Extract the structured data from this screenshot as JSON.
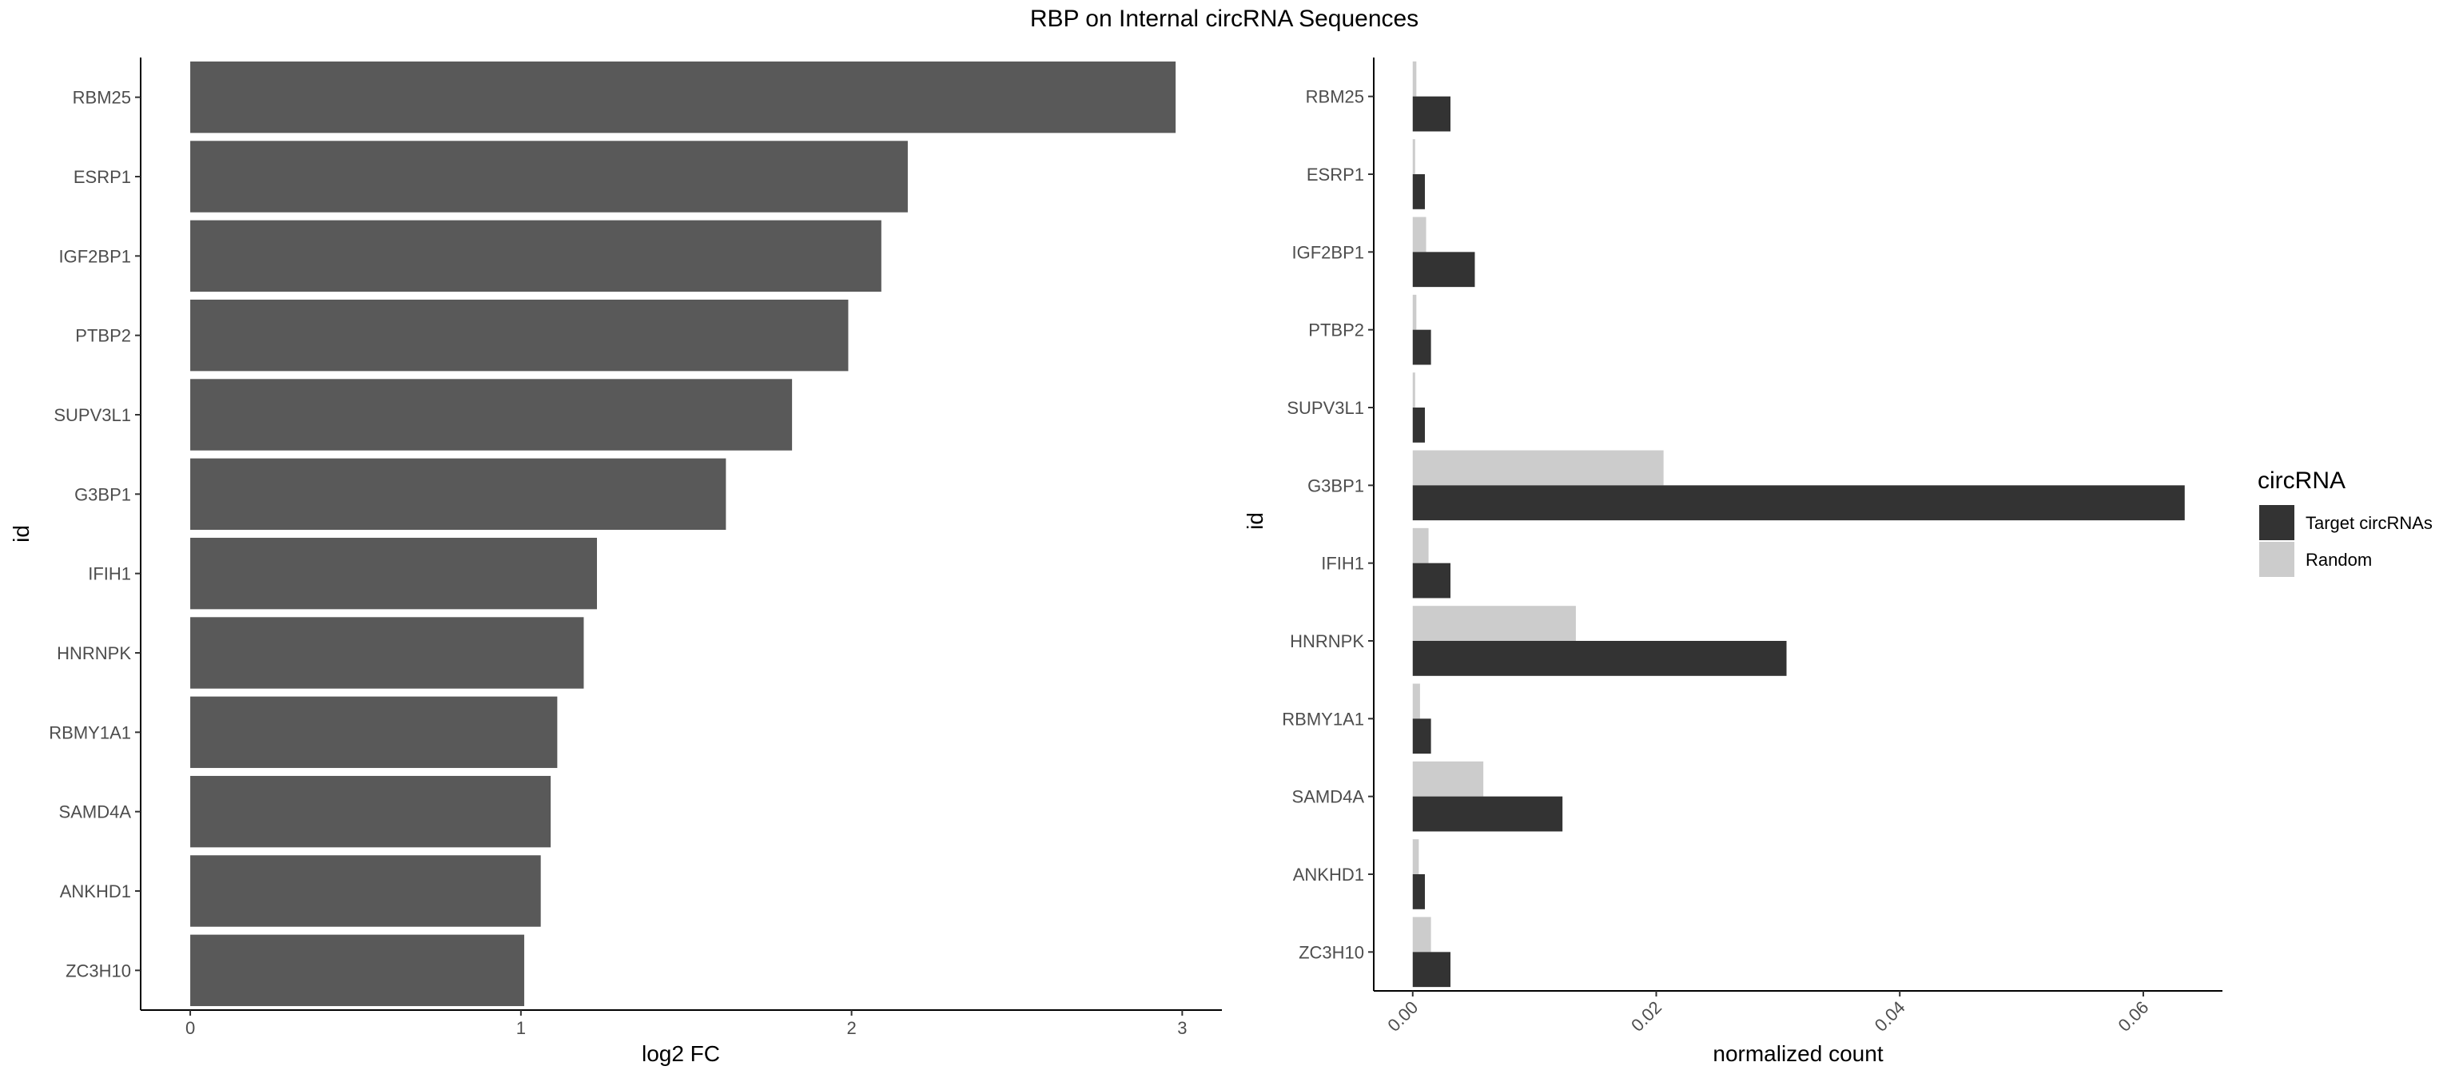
{
  "figure_title": "RBP on Internal circRNA Sequences",
  "chart_data": [
    {
      "type": "bar",
      "orientation": "horizontal",
      "categories": [
        "RBM25",
        "ESRP1",
        "IGF2BP1",
        "PTBP2",
        "SUPV3L1",
        "G3BP1",
        "IFIH1",
        "HNRNPK",
        "RBMY1A1",
        "SAMD4A",
        "ANKHD1",
        "ZC3H10"
      ],
      "values": [
        2.98,
        2.17,
        2.09,
        1.99,
        1.82,
        1.62,
        1.23,
        1.19,
        1.11,
        1.09,
        1.06,
        1.01
      ],
      "xlabel": "log2 FC",
      "ylabel": "id",
      "xlim": [
        -0.15,
        3.12
      ],
      "xticks": [
        "0",
        "1",
        "2",
        "3"
      ],
      "bar_color": "#595959",
      "grid": false
    },
    {
      "type": "bar",
      "orientation": "horizontal",
      "categories": [
        "RBM25",
        "ESRP1",
        "IGF2BP1",
        "PTBP2",
        "SUPV3L1",
        "G3BP1",
        "IFIH1",
        "HNRNPK",
        "RBMY1A1",
        "SAMD4A",
        "ANKHD1",
        "ZC3H10"
      ],
      "series": [
        {
          "name": "Target circRNAs",
          "color": "#333333",
          "values": [
            0.0031,
            0.001,
            0.0051,
            0.0015,
            0.001,
            0.0634,
            0.0031,
            0.0307,
            0.0015,
            0.0123,
            0.001,
            0.0031
          ]
        },
        {
          "name": "Random",
          "color": "#cccccc",
          "values": [
            0.0003,
            0.0002,
            0.0011,
            0.0003,
            0.0002,
            0.0206,
            0.0013,
            0.0134,
            0.0006,
            0.0058,
            0.0005,
            0.0015
          ]
        }
      ],
      "xlabel": "normalized count",
      "ylabel": "id",
      "xlim": [
        -0.0032,
        0.0665
      ],
      "xticks": [
        "0.00",
        "0.02",
        "0.04",
        "0.06"
      ],
      "legend_title": "circRNA",
      "legend_position": "right",
      "grid": false
    }
  ]
}
